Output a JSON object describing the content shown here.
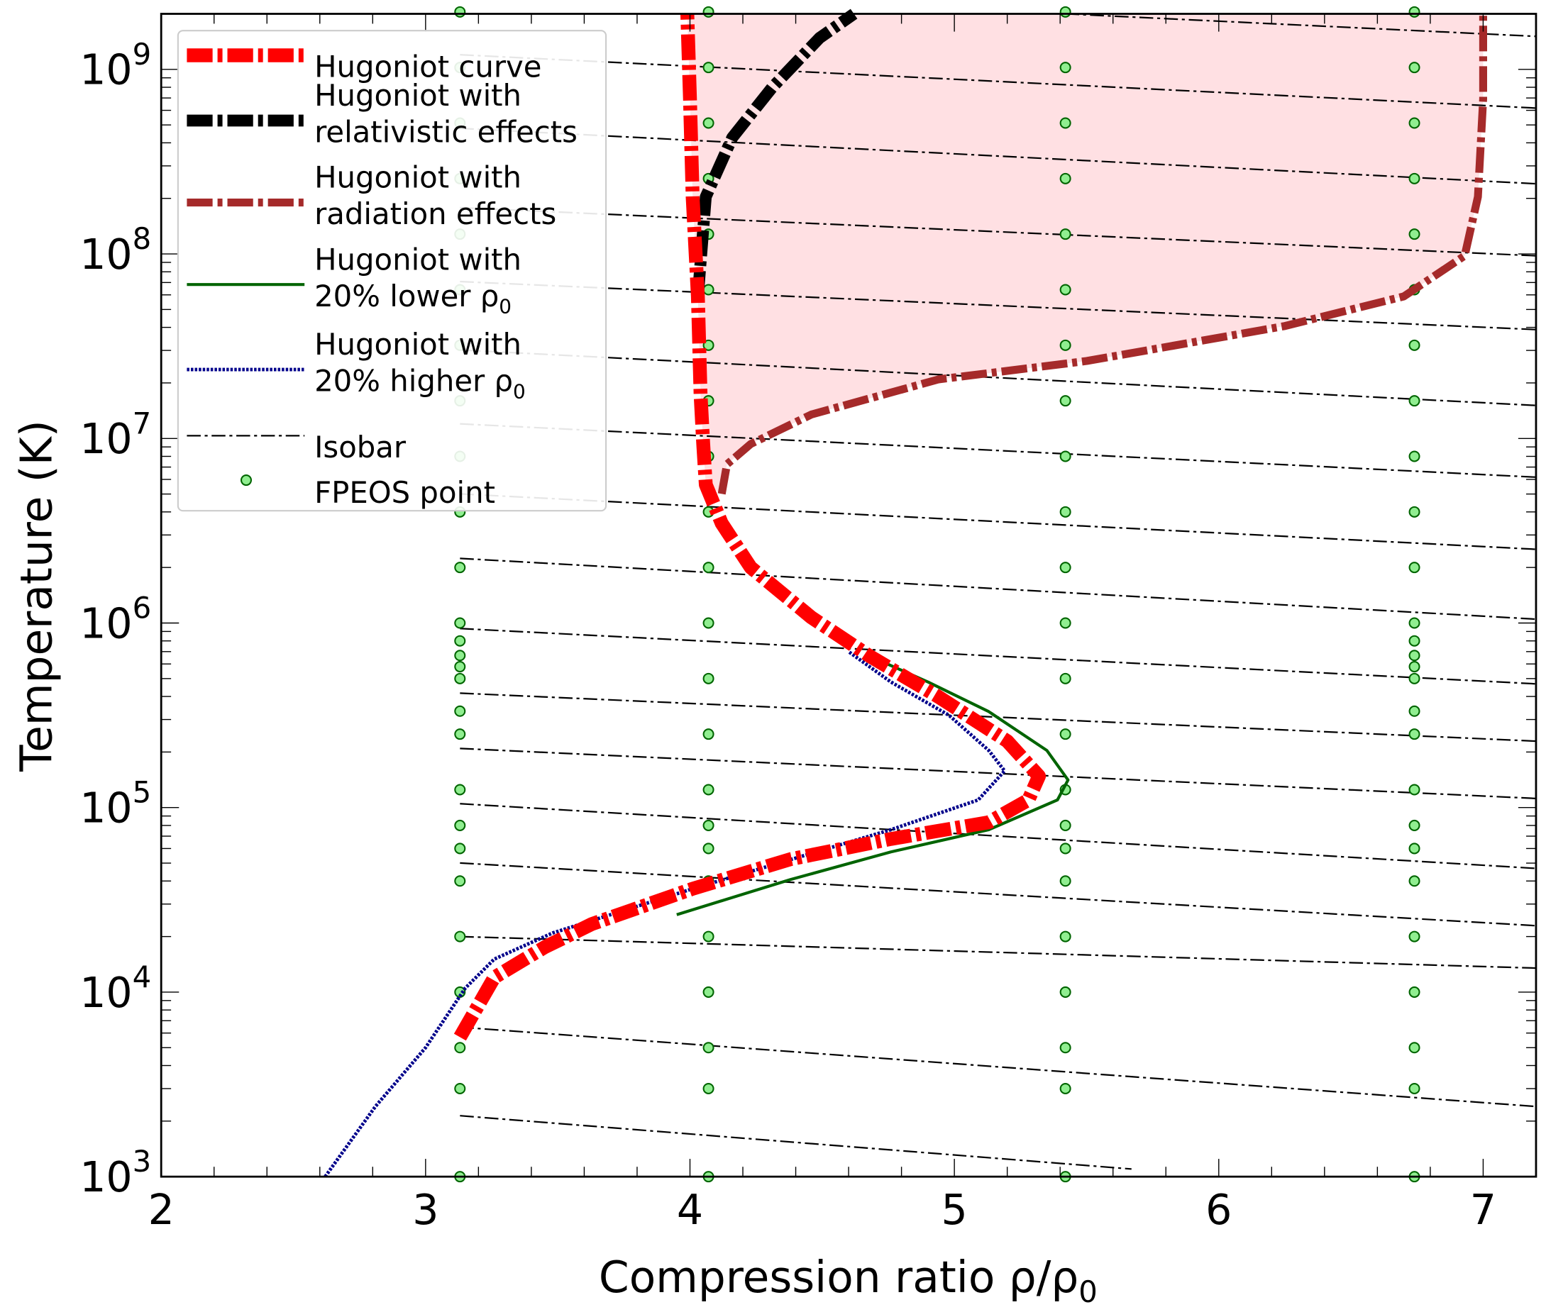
{
  "chart_data": {
    "type": "line",
    "xlabel": "Compression ratio ρ/ρ",
    "xlabel_sub": "0",
    "ylabel": "Temperature (K)",
    "xlim": [
      2,
      7.2
    ],
    "ylim": [
      1000,
      2000000000
    ],
    "yscale": "log",
    "x_ticks": [
      "2",
      "3",
      "4",
      "5",
      "6",
      "7"
    ],
    "y_ticks": [
      "10^3",
      "10^4",
      "10^5",
      "10^6",
      "10^7",
      "10^8",
      "10^9"
    ],
    "grid": false,
    "legend_position": "top-left",
    "colors": {
      "hugoniot": "#ff0000",
      "relativistic": "#000000",
      "radiation": "#a52a2a",
      "lower_rho0": "#006400",
      "higher_rho0": "#00008b",
      "isobar": "#000000",
      "fpeos_fill": "#90ee90",
      "fpeos_edge": "#006400",
      "shaded_region": "#ffe0e3"
    },
    "legend": [
      {
        "key": "hugoniot",
        "line1": "Hugoniot curve",
        "line2": ""
      },
      {
        "key": "relativistic",
        "line1": "Hugoniot with",
        "line2": "relativistic effects"
      },
      {
        "key": "radiation",
        "line1": "Hugoniot with",
        "line2": "radiation effects"
      },
      {
        "key": "lower_rho0",
        "line1": "Hugoniot with",
        "line2": "20% lower ρ",
        "sub": "0"
      },
      {
        "key": "higher_rho0",
        "line1": "Hugoniot with",
        "line2": "20% higher ρ",
        "sub": "0"
      },
      {
        "key": "isobar",
        "line1": "Isobar",
        "line2": ""
      },
      {
        "key": "fpeos",
        "line1": "FPEOS point",
        "line2": ""
      }
    ],
    "series": {
      "hugoniot": [
        [
          3.13,
          5700
        ],
        [
          3.26,
          12000
        ],
        [
          3.45,
          17500
        ],
        [
          3.63,
          23400
        ],
        [
          4.01,
          36300
        ],
        [
          4.38,
          52500
        ],
        [
          4.76,
          67600
        ],
        [
          5.13,
          83200
        ],
        [
          5.28,
          110000
        ],
        [
          5.32,
          148000
        ],
        [
          5.2,
          229000
        ],
        [
          4.94,
          398000
        ],
        [
          4.68,
          661000
        ],
        [
          4.46,
          1070000
        ],
        [
          4.23,
          2000000
        ],
        [
          4.12,
          3470000
        ],
        [
          4.06,
          5620000
        ],
        [
          4.05,
          9330000
        ],
        [
          4.04,
          17400000
        ],
        [
          4.03,
          58900000
        ],
        [
          4.01,
          204000000
        ],
        [
          4.0,
          692000000
        ],
        [
          3.99,
          2000000000
        ]
      ],
      "relativistic": [
        [
          4.03,
          58900000
        ],
        [
          4.06,
          204000000
        ],
        [
          4.16,
          427000000
        ],
        [
          4.31,
          794000000
        ],
        [
          4.49,
          1480000000
        ],
        [
          4.62,
          2000000000
        ]
      ],
      "radiation": [
        [
          4.12,
          5010000
        ],
        [
          4.14,
          7240000
        ],
        [
          4.23,
          9330000
        ],
        [
          4.46,
          13500000
        ],
        [
          4.94,
          20900000
        ],
        [
          5.5,
          26300000
        ],
        [
          6.25,
          40700000
        ],
        [
          6.7,
          58900000
        ],
        [
          6.93,
          97700000
        ],
        [
          6.98,
          204000000
        ],
        [
          7.0,
          692000000
        ],
        [
          7.0,
          2000000000
        ]
      ],
      "lower_rho0": [
        [
          3.95,
          26300
        ],
        [
          4.38,
          40700
        ],
        [
          4.76,
          57500
        ],
        [
          5.13,
          75900
        ],
        [
          5.39,
          110000
        ],
        [
          5.43,
          141000
        ],
        [
          5.35,
          204000
        ],
        [
          5.13,
          331000
        ],
        [
          4.9,
          479000
        ],
        [
          4.68,
          661000
        ]
      ],
      "higher_rho0": [
        [
          2.62,
          1000
        ],
        [
          2.81,
          2400
        ],
        [
          3.0,
          5000
        ],
        [
          3.15,
          10500
        ],
        [
          3.26,
          15100
        ],
        [
          3.48,
          20900
        ],
        [
          4.01,
          36300
        ],
        [
          4.76,
          75900
        ],
        [
          5.09,
          110000
        ],
        [
          5.19,
          158000
        ],
        [
          5.13,
          204000
        ],
        [
          4.98,
          316000
        ],
        [
          4.76,
          479000
        ],
        [
          4.6,
          700000
        ]
      ],
      "isobars": [
        [
          [
            3.13,
            2140
          ],
          [
            5.67,
            1100
          ]
        ],
        [
          [
            3.13,
            6460
          ],
          [
            7.2,
            2400
          ]
        ],
        [
          [
            3.13,
            20000
          ],
          [
            7.2,
            13500
          ]
        ],
        [
          [
            3.13,
            50100
          ],
          [
            7.2,
            22900
          ]
        ],
        [
          [
            3.13,
            105000
          ],
          [
            7.2,
            46800
          ]
        ],
        [
          [
            3.13,
            209000
          ],
          [
            7.2,
            112000
          ]
        ],
        [
          [
            3.13,
            417000
          ],
          [
            7.2,
            229000
          ]
        ],
        [
          [
            3.13,
            933000
          ],
          [
            7.2,
            468000
          ]
        ],
        [
          [
            3.13,
            2240000
          ],
          [
            7.2,
            1050000
          ]
        ],
        [
          [
            3.13,
            5010000
          ],
          [
            7.2,
            2510000
          ]
        ],
        [
          [
            3.13,
            12000000
          ],
          [
            7.2,
            6170000
          ]
        ],
        [
          [
            3.13,
            30200000
          ],
          [
            7.2,
            15100000
          ]
        ],
        [
          [
            3.13,
            70800000
          ],
          [
            7.2,
            38900000
          ]
        ],
        [
          [
            3.13,
            178000000
          ],
          [
            7.2,
            97700000
          ]
        ],
        [
          [
            3.13,
            479000000
          ],
          [
            7.2,
            240000000
          ]
        ],
        [
          [
            3.13,
            1200000000
          ],
          [
            7.2,
            617000000
          ]
        ],
        [
          [
            5.42,
            2000000000
          ],
          [
            7.2,
            1510000000
          ]
        ]
      ],
      "fpeos": {
        "x": [
          3.13,
          4.07,
          5.42,
          6.74
        ],
        "T_common": [
          1000,
          3000,
          5000,
          10000,
          20000,
          40000,
          60000,
          80000,
          125000,
          250000,
          500000,
          1000000,
          2000000,
          4000000,
          8000000,
          16000000,
          32000000,
          64000000,
          128000000,
          256000000,
          512000000,
          1024000000,
          2048000000
        ],
        "T_extra_outer_columns": [
          333000,
          580000,
          667000,
          800000
        ]
      }
    }
  }
}
